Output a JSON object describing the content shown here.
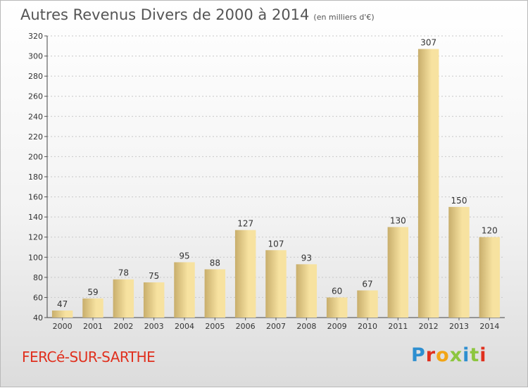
{
  "header": {
    "title": "Autres Revenus Divers de 2000 à 2014",
    "subtitle": "(en milliers d'€)"
  },
  "footer": {
    "commune": "FERCé-SUR-SARTHE",
    "logo_text": "Proxiti",
    "logo_colors": [
      "#2e8fd0",
      "#e0301e",
      "#f2a516",
      "#8cc63f",
      "#2e8fd0",
      "#8cc63f",
      "#e0301e"
    ]
  },
  "colors": {
    "bar_light": "#f7e2a0",
    "bar_dark": "#c8ae6c",
    "text": "#333333",
    "grid": "#c8c8c8",
    "commune": "#e0301e"
  },
  "chart_data": {
    "type": "bar",
    "categories": [
      "2000",
      "2001",
      "2002",
      "2003",
      "2004",
      "2005",
      "2006",
      "2007",
      "2008",
      "2009",
      "2010",
      "2011",
      "2012",
      "2013",
      "2014"
    ],
    "values": [
      47,
      59,
      78,
      75,
      95,
      88,
      127,
      107,
      93,
      60,
      67,
      130,
      307,
      150,
      120
    ],
    "ylim": [
      40,
      320
    ],
    "yticks": [
      40,
      60,
      80,
      100,
      120,
      140,
      160,
      180,
      200,
      220,
      240,
      260,
      280,
      300,
      320
    ],
    "grid": true,
    "data_labels": true
  }
}
